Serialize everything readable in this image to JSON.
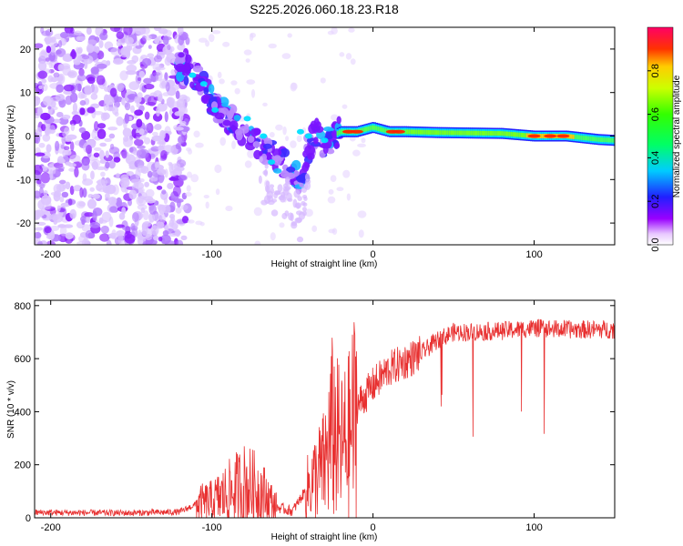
{
  "title": "S225.2026.060.18.23.R18",
  "chart_data": [
    {
      "type": "heatmap",
      "title": "S225.2026.060.18.23.R18",
      "xlabel": "Height of straight line (km)",
      "ylabel": "Frequency (Hz)",
      "xlim": [
        -210,
        150
      ],
      "ylim": [
        -25,
        25
      ],
      "xticks": [
        -200,
        -100,
        0,
        100
      ],
      "yticks": [
        -20,
        -10,
        0,
        10,
        20
      ],
      "colorbar": {
        "label": "Normalized spectral amplitude",
        "range": [
          0,
          1
        ],
        "ticks": [
          "0.0",
          "0.2",
          "0.4",
          "0.6",
          "0.8"
        ]
      },
      "ridge": {
        "x": [
          -120,
          -110,
          -100,
          -90,
          -80,
          -70,
          -60,
          -50,
          -45,
          -40,
          -35,
          -30,
          -25,
          -20,
          -10,
          0,
          10,
          20,
          40,
          60,
          80,
          100,
          120,
          140,
          150
        ],
        "freq": [
          16,
          14,
          8,
          4,
          1,
          -2,
          -5,
          -8,
          -11,
          -3,
          1,
          -2,
          0,
          1,
          1,
          2,
          1,
          1,
          0.8,
          0.7,
          0.6,
          0,
          0,
          -0.8,
          -1
        ]
      }
    },
    {
      "type": "line",
      "xlabel": "Height of straight line (km)",
      "ylabel": "SNR (10 * v/v)",
      "xlim": [
        -210,
        150
      ],
      "ylim": [
        0,
        820
      ],
      "xticks": [
        -200,
        -100,
        0,
        100
      ],
      "yticks": [
        0,
        200,
        400,
        600,
        800
      ],
      "series": [
        {
          "name": "SNR",
          "color": "#e83030",
          "x": [
            -210,
            -150,
            -120,
            -110,
            -100,
            -90,
            -80,
            -70,
            -60,
            -50,
            -40,
            -30,
            -25,
            -20,
            -15,
            -10,
            0,
            10,
            20,
            30,
            40,
            50,
            60,
            80,
            100,
            120,
            150
          ],
          "y": [
            20,
            18,
            22,
            50,
            60,
            90,
            120,
            100,
            40,
            25,
            120,
            200,
            340,
            260,
            300,
            420,
            500,
            560,
            590,
            620,
            670,
            700,
            700,
            705,
            715,
            710,
            710
          ]
        }
      ]
    }
  ]
}
